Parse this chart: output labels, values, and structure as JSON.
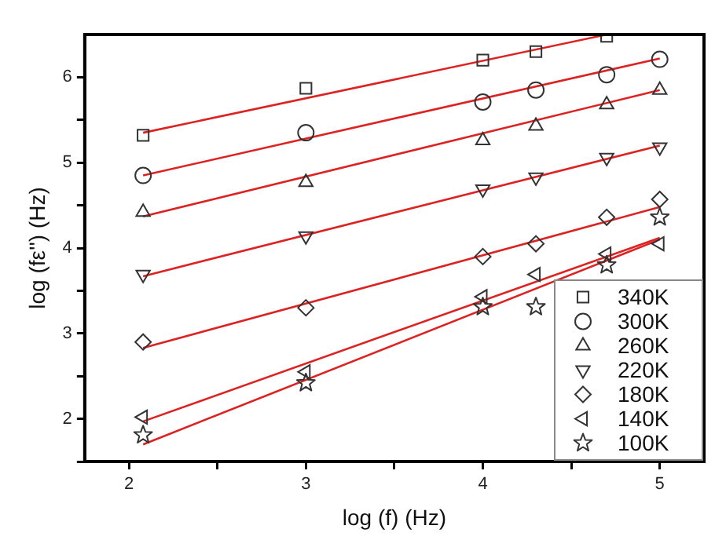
{
  "chart_data": {
    "type": "scatter",
    "xlabel": "log (f) (Hz)",
    "ylabel": "log (fε'') (Hz)",
    "x": [
      2.08,
      3,
      4,
      4.3,
      4.7,
      5
    ],
    "xlim": [
      1.75,
      5.25
    ],
    "xticks": [
      2,
      {
        "value": 2.5,
        "label": null
      },
      3,
      {
        "value": 3.5,
        "label": null
      },
      4,
      {
        "value": 4.5,
        "label": null
      },
      5
    ],
    "ylim": [
      1.5,
      6.5
    ],
    "yticks": [
      {
        "value": 1.5,
        "label": null
      },
      2,
      {
        "value": 2.5,
        "label": null
      },
      3,
      {
        "value": 3.5,
        "label": null
      },
      4,
      {
        "value": 4.5,
        "label": null
      },
      5,
      {
        "value": 5.5,
        "label": null
      },
      6
    ],
    "grid": false,
    "legend": "bottom right",
    "series": [
      {
        "name": "340K",
        "color": "#333333",
        "marker": "square",
        "values": [
          5.32,
          5.87,
          6.2,
          6.3,
          6.48,
          null
        ]
      },
      {
        "name": "300K",
        "color": "#333333",
        "marker": "circle",
        "values": [
          4.85,
          5.35,
          5.71,
          5.85,
          6.03,
          6.21
        ]
      },
      {
        "name": "260K",
        "color": "#333333",
        "marker": "triangle",
        "values": [
          4.42,
          4.77,
          5.26,
          5.43,
          5.68,
          5.85
        ]
      },
      {
        "name": "220K",
        "color": "#333333",
        "marker": "triangle-down",
        "values": [
          3.69,
          4.14,
          4.69,
          4.83,
          5.06,
          5.18
        ]
      },
      {
        "name": "180K",
        "color": "#333333",
        "marker": "diamond",
        "values": [
          2.9,
          3.3,
          3.9,
          4.05,
          4.36,
          4.57
        ]
      },
      {
        "name": "140K",
        "color": "#333333",
        "marker": "triangle-left",
        "values": [
          2.02,
          2.55,
          3.43,
          3.69,
          3.93,
          4.05
        ]
      },
      {
        "name": "100K",
        "color": "#333333",
        "marker": "star",
        "values": [
          1.81,
          2.42,
          3.31,
          3.31,
          3.8,
          4.36
        ]
      },
      {
        "type": "line",
        "color": "#dd2222",
        "marker": "none",
        "x": [
          2.08,
          4.7
        ],
        "values": [
          5.35,
          6.5
        ]
      },
      {
        "type": "line",
        "color": "#dd2222",
        "marker": "none",
        "x": [
          2.08,
          5
        ],
        "values": [
          4.85,
          6.22
        ]
      },
      {
        "type": "line",
        "color": "#dd2222",
        "marker": "none",
        "x": [
          2.08,
          5
        ],
        "values": [
          4.37,
          5.85
        ]
      },
      {
        "type": "line",
        "color": "#dd2222",
        "marker": "none",
        "x": [
          2.08,
          5
        ],
        "values": [
          3.67,
          5.2
        ]
      },
      {
        "type": "line",
        "color": "#dd2222",
        "marker": "none",
        "x": [
          2.08,
          5
        ],
        "values": [
          2.83,
          4.48
        ]
      },
      {
        "type": "line",
        "color": "#dd2222",
        "marker": "none",
        "x": [
          2.08,
          5
        ],
        "values": [
          1.97,
          4.12
        ]
      },
      {
        "type": "line",
        "color": "#dd2222",
        "marker": "none",
        "x": [
          2.08,
          5
        ],
        "values": [
          1.7,
          4.1
        ]
      }
    ]
  }
}
